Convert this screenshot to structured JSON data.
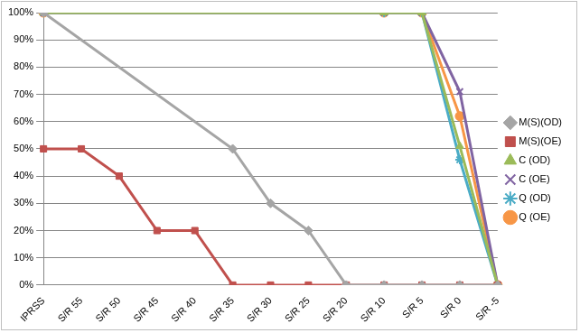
{
  "chart_data": {
    "type": "line",
    "categories": [
      "IPRSS",
      "S/R 55",
      "S/R 50",
      "S/R 45",
      "S/R 40",
      "S/R 35",
      "S/R 30",
      "S/R 25",
      "S/R 20",
      "S/R 10",
      "S/R 5",
      "S/R 0",
      "S/R -5"
    ],
    "series": [
      {
        "name": "M(S)(OD)",
        "color": "#a5a5a5",
        "marker": "diamond",
        "values": [
          100,
          null,
          null,
          null,
          null,
          50,
          30,
          20,
          0,
          0,
          0,
          0,
          0
        ]
      },
      {
        "name": "M(S)(OE)",
        "color": "#c0504d",
        "marker": "square",
        "values": [
          50,
          50,
          40,
          20,
          20,
          0,
          0,
          0,
          0,
          0,
          0,
          0,
          0
        ]
      },
      {
        "name": "C (OD)",
        "color": "#9bbb59",
        "marker": "triangle",
        "values": [
          100,
          null,
          null,
          null,
          null,
          null,
          null,
          null,
          null,
          100,
          100,
          51,
          0
        ]
      },
      {
        "name": "C (OE)",
        "color": "#8064a2",
        "marker": "x",
        "values": [
          100,
          null,
          null,
          null,
          null,
          null,
          null,
          null,
          null,
          100,
          100,
          71,
          0
        ]
      },
      {
        "name": "Q (OD)",
        "color": "#4bacc6",
        "marker": "star",
        "values": [
          100,
          null,
          null,
          null,
          null,
          null,
          null,
          null,
          null,
          100,
          100,
          46,
          0
        ]
      },
      {
        "name": "Q (OE)",
        "color": "#f79646",
        "marker": "circle",
        "values": [
          100,
          null,
          null,
          null,
          null,
          null,
          null,
          null,
          null,
          100,
          100,
          62,
          0
        ]
      }
    ],
    "ylim": [
      0,
      100
    ],
    "yticks": [
      {
        "value": 0,
        "label": "0%"
      },
      {
        "value": 10,
        "label": "10%"
      },
      {
        "value": 20,
        "label": "20%"
      },
      {
        "value": 30,
        "label": "30%"
      },
      {
        "value": 40,
        "label": "40%"
      },
      {
        "value": 50,
        "label": "50%"
      },
      {
        "value": 60,
        "label": "60%"
      },
      {
        "value": 70,
        "label": "70%"
      },
      {
        "value": 80,
        "label": "80%"
      },
      {
        "value": 90,
        "label": "90%"
      },
      {
        "value": 100,
        "label": "100%"
      }
    ],
    "grid": true,
    "legend": "right"
  }
}
